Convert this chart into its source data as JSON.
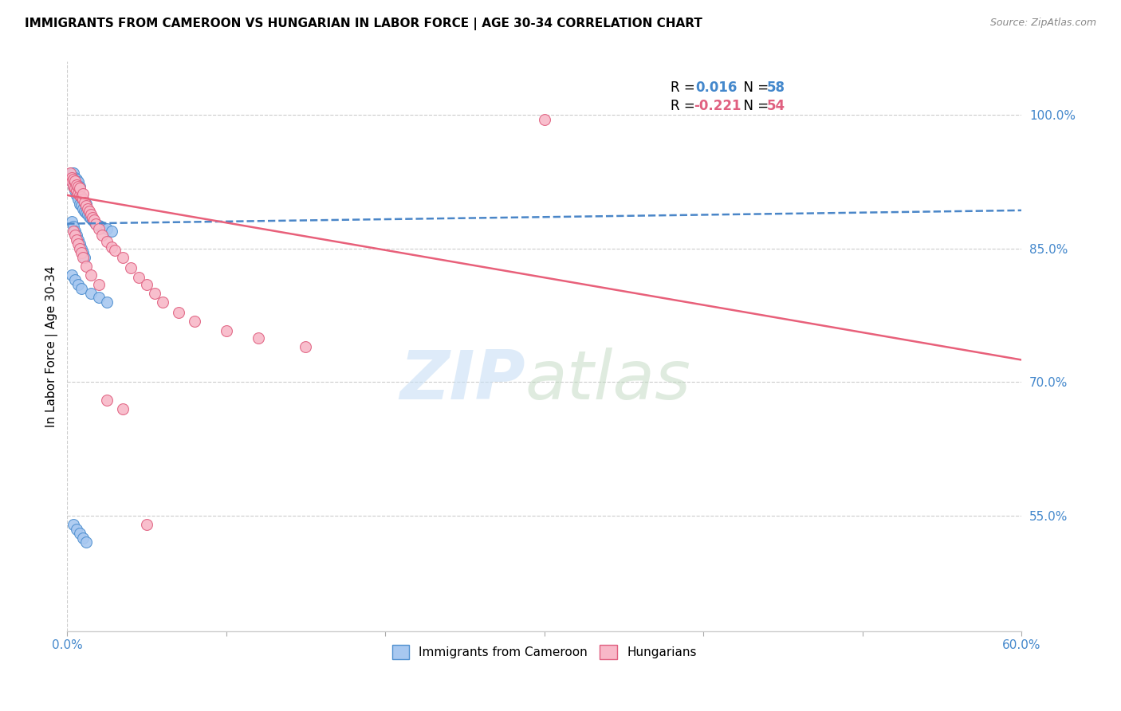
{
  "title": "IMMIGRANTS FROM CAMEROON VS HUNGARIAN IN LABOR FORCE | AGE 30-34 CORRELATION CHART",
  "source": "Source: ZipAtlas.com",
  "ylabel": "In Labor Force | Age 30-34",
  "xlim": [
    0.0,
    0.6
  ],
  "ylim": [
    0.42,
    1.06
  ],
  "xticks": [
    0.0,
    0.1,
    0.2,
    0.3,
    0.4,
    0.5,
    0.6
  ],
  "xticklabels": [
    "0.0%",
    "",
    "",
    "",
    "",
    "",
    "60.0%"
  ],
  "yticks_right": [
    0.55,
    0.7,
    0.85,
    1.0
  ],
  "ytick_right_labels": [
    "55.0%",
    "70.0%",
    "85.0%",
    "100.0%"
  ],
  "blue_color": "#a8c8f0",
  "pink_color": "#f8b8c8",
  "blue_edge_color": "#5090d0",
  "pink_edge_color": "#e06080",
  "blue_line_color": "#4a86c8",
  "pink_line_color": "#e8607a",
  "right_axis_color": "#4488cc",
  "legend_r_blue": "0.016",
  "legend_n_blue": "58",
  "legend_r_pink": "-0.221",
  "legend_n_pink": "54",
  "blue_scatter_x": [
    0.002,
    0.003,
    0.003,
    0.004,
    0.004,
    0.004,
    0.005,
    0.005,
    0.005,
    0.006,
    0.006,
    0.006,
    0.007,
    0.007,
    0.007,
    0.008,
    0.008,
    0.008,
    0.009,
    0.009,
    0.01,
    0.01,
    0.011,
    0.011,
    0.012,
    0.012,
    0.013,
    0.014,
    0.015,
    0.016,
    0.017,
    0.018,
    0.02,
    0.021,
    0.022,
    0.025,
    0.028,
    0.003,
    0.004,
    0.005,
    0.006,
    0.007,
    0.008,
    0.009,
    0.01,
    0.011,
    0.003,
    0.005,
    0.007,
    0.009,
    0.015,
    0.02,
    0.025,
    0.004,
    0.006,
    0.008,
    0.01,
    0.012
  ],
  "blue_scatter_y": [
    0.93,
    0.925,
    0.935,
    0.92,
    0.928,
    0.935,
    0.915,
    0.922,
    0.93,
    0.91,
    0.918,
    0.928,
    0.905,
    0.915,
    0.925,
    0.9,
    0.91,
    0.92,
    0.898,
    0.908,
    0.895,
    0.905,
    0.892,
    0.902,
    0.89,
    0.9,
    0.888,
    0.886,
    0.884,
    0.882,
    0.88,
    0.878,
    0.876,
    0.875,
    0.874,
    0.872,
    0.87,
    0.88,
    0.875,
    0.87,
    0.865,
    0.86,
    0.855,
    0.85,
    0.845,
    0.84,
    0.82,
    0.815,
    0.81,
    0.805,
    0.8,
    0.795,
    0.79,
    0.54,
    0.535,
    0.53,
    0.525,
    0.52
  ],
  "pink_scatter_x": [
    0.002,
    0.003,
    0.003,
    0.004,
    0.004,
    0.005,
    0.005,
    0.006,
    0.006,
    0.007,
    0.007,
    0.008,
    0.008,
    0.009,
    0.01,
    0.01,
    0.011,
    0.012,
    0.013,
    0.014,
    0.015,
    0.016,
    0.017,
    0.018,
    0.02,
    0.022,
    0.025,
    0.028,
    0.03,
    0.035,
    0.04,
    0.045,
    0.05,
    0.055,
    0.06,
    0.07,
    0.08,
    0.1,
    0.12,
    0.15,
    0.004,
    0.005,
    0.006,
    0.007,
    0.008,
    0.009,
    0.01,
    0.012,
    0.015,
    0.02,
    0.025,
    0.035,
    0.05,
    0.3
  ],
  "pink_scatter_y": [
    0.935,
    0.93,
    0.925,
    0.92,
    0.928,
    0.918,
    0.926,
    0.915,
    0.922,
    0.912,
    0.92,
    0.91,
    0.918,
    0.908,
    0.905,
    0.912,
    0.902,
    0.898,
    0.895,
    0.892,
    0.888,
    0.885,
    0.882,
    0.878,
    0.872,
    0.865,
    0.858,
    0.852,
    0.848,
    0.84,
    0.828,
    0.818,
    0.81,
    0.8,
    0.79,
    0.778,
    0.768,
    0.758,
    0.75,
    0.74,
    0.87,
    0.865,
    0.86,
    0.855,
    0.85,
    0.845,
    0.84,
    0.83,
    0.82,
    0.81,
    0.68,
    0.67,
    0.54,
    0.995
  ],
  "blue_trend_x": [
    0.0,
    0.6
  ],
  "blue_trend_y": [
    0.878,
    0.893
  ],
  "pink_trend_x": [
    0.0,
    0.6
  ],
  "pink_trend_y": [
    0.91,
    0.725
  ]
}
